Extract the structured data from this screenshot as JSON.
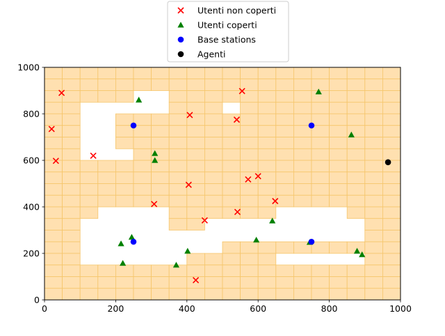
{
  "chart_data": {
    "type": "scatter",
    "title": "",
    "xlabel": "",
    "ylabel": "",
    "xlim": [
      0,
      1000
    ],
    "ylim": [
      0,
      1000
    ],
    "xticks": [
      0,
      200,
      400,
      600,
      800,
      1000
    ],
    "yticks": [
      0,
      200,
      400,
      600,
      800,
      1000
    ],
    "grid": false,
    "legend_position": "top-center",
    "cell_size": 50,
    "coverage_cells": [
      [
        0,
        0
      ],
      [
        1,
        0
      ],
      [
        2,
        0
      ],
      [
        3,
        0
      ],
      [
        4,
        0
      ],
      [
        5,
        0
      ],
      [
        6,
        0
      ],
      [
        7,
        0
      ],
      [
        8,
        0
      ],
      [
        9,
        0
      ],
      [
        10,
        0
      ],
      [
        11,
        0
      ],
      [
        12,
        0
      ],
      [
        13,
        0
      ],
      [
        14,
        0
      ],
      [
        15,
        0
      ],
      [
        16,
        0
      ],
      [
        17,
        0
      ],
      [
        18,
        0
      ],
      [
        19,
        0
      ],
      [
        0,
        1
      ],
      [
        1,
        1
      ],
      [
        2,
        1
      ],
      [
        3,
        1
      ],
      [
        4,
        1
      ],
      [
        5,
        1
      ],
      [
        6,
        1
      ],
      [
        7,
        1
      ],
      [
        8,
        1
      ],
      [
        9,
        1
      ],
      [
        10,
        1
      ],
      [
        11,
        1
      ],
      [
        12,
        1
      ],
      [
        13,
        1
      ],
      [
        14,
        1
      ],
      [
        15,
        1
      ],
      [
        16,
        1
      ],
      [
        17,
        1
      ],
      [
        18,
        1
      ],
      [
        19,
        1
      ],
      [
        0,
        2
      ],
      [
        1,
        2
      ],
      [
        2,
        2
      ],
      [
        3,
        2
      ],
      [
        4,
        2
      ],
      [
        7,
        2
      ],
      [
        8,
        2
      ],
      [
        9,
        2
      ],
      [
        10,
        2
      ],
      [
        11,
        2
      ],
      [
        12,
        2
      ],
      [
        13,
        2
      ],
      [
        14,
        2
      ],
      [
        15,
        2
      ],
      [
        16,
        2
      ],
      [
        17,
        2
      ],
      [
        18,
        2
      ],
      [
        19,
        2
      ],
      [
        0,
        3
      ],
      [
        1,
        3
      ],
      [
        7,
        3
      ],
      [
        8,
        3
      ],
      [
        9,
        3
      ],
      [
        11,
        3
      ],
      [
        12,
        3
      ],
      [
        13,
        3
      ],
      [
        14,
        3
      ],
      [
        15,
        3
      ],
      [
        16,
        3
      ],
      [
        17,
        3
      ],
      [
        18,
        3
      ],
      [
        19,
        3
      ],
      [
        0,
        4
      ],
      [
        1,
        4
      ],
      [
        4,
        4
      ],
      [
        5,
        4
      ],
      [
        6,
        4
      ],
      [
        7,
        4
      ],
      [
        8,
        4
      ],
      [
        9,
        4
      ],
      [
        10,
        4
      ],
      [
        11,
        4
      ],
      [
        12,
        4
      ],
      [
        13,
        4
      ],
      [
        14,
        4
      ],
      [
        15,
        4
      ],
      [
        16,
        4
      ],
      [
        17,
        4
      ],
      [
        18,
        4
      ],
      [
        19,
        4
      ],
      [
        0,
        5
      ],
      [
        1,
        5
      ],
      [
        4,
        5
      ],
      [
        5,
        5
      ],
      [
        6,
        5
      ],
      [
        7,
        5
      ],
      [
        8,
        5
      ],
      [
        9,
        5
      ],
      [
        10,
        5
      ],
      [
        11,
        5
      ],
      [
        12,
        5
      ],
      [
        13,
        5
      ],
      [
        14,
        5
      ],
      [
        15,
        5
      ],
      [
        16,
        5
      ],
      [
        17,
        5
      ],
      [
        18,
        5
      ],
      [
        19,
        5
      ],
      [
        0,
        6
      ],
      [
        1,
        6
      ],
      [
        4,
        6
      ],
      [
        5,
        6
      ],
      [
        6,
        6
      ],
      [
        7,
        6
      ],
      [
        8,
        6
      ],
      [
        9,
        6
      ],
      [
        10,
        6
      ],
      [
        11,
        6
      ],
      [
        12,
        6
      ],
      [
        13,
        6
      ],
      [
        14,
        6
      ],
      [
        15,
        6
      ],
      [
        16,
        6
      ],
      [
        17,
        6
      ],
      [
        18,
        6
      ],
      [
        19,
        6
      ],
      [
        0,
        7
      ],
      [
        1,
        7
      ],
      [
        5,
        7
      ],
      [
        6,
        7
      ],
      [
        7,
        7
      ],
      [
        8,
        7
      ],
      [
        9,
        7
      ],
      [
        10,
        7
      ],
      [
        11,
        7
      ],
      [
        12,
        7
      ],
      [
        13,
        7
      ],
      [
        14,
        7
      ],
      [
        15,
        7
      ],
      [
        16,
        7
      ],
      [
        17,
        7
      ],
      [
        18,
        7
      ],
      [
        19,
        7
      ],
      [
        0,
        8
      ],
      [
        1,
        8
      ],
      [
        2,
        8
      ],
      [
        3,
        8
      ],
      [
        4,
        8
      ],
      [
        5,
        8
      ],
      [
        6,
        8
      ],
      [
        7,
        8
      ],
      [
        8,
        8
      ],
      [
        9,
        8
      ],
      [
        10,
        8
      ],
      [
        11,
        8
      ],
      [
        12,
        8
      ],
      [
        13,
        8
      ],
      [
        14,
        8
      ],
      [
        15,
        8
      ],
      [
        16,
        8
      ],
      [
        17,
        8
      ],
      [
        18,
        8
      ],
      [
        19,
        8
      ],
      [
        0,
        9
      ],
      [
        1,
        9
      ],
      [
        2,
        9
      ],
      [
        3,
        9
      ],
      [
        4,
        9
      ],
      [
        5,
        9
      ],
      [
        6,
        9
      ],
      [
        7,
        9
      ],
      [
        8,
        9
      ],
      [
        9,
        9
      ],
      [
        10,
        9
      ],
      [
        11,
        9
      ],
      [
        12,
        9
      ],
      [
        13,
        9
      ],
      [
        14,
        9
      ],
      [
        15,
        9
      ],
      [
        16,
        9
      ],
      [
        17,
        9
      ],
      [
        18,
        9
      ],
      [
        19,
        9
      ],
      [
        0,
        10
      ],
      [
        1,
        10
      ],
      [
        2,
        10
      ],
      [
        3,
        10
      ],
      [
        4,
        10
      ],
      [
        5,
        10
      ],
      [
        6,
        10
      ],
      [
        7,
        10
      ],
      [
        8,
        10
      ],
      [
        9,
        10
      ],
      [
        10,
        10
      ],
      [
        11,
        10
      ],
      [
        12,
        10
      ],
      [
        13,
        10
      ],
      [
        14,
        10
      ],
      [
        15,
        10
      ],
      [
        16,
        10
      ],
      [
        17,
        10
      ],
      [
        18,
        10
      ],
      [
        19,
        10
      ],
      [
        0,
        11
      ],
      [
        1,
        11
      ],
      [
        2,
        11
      ],
      [
        3,
        11
      ],
      [
        4,
        11
      ],
      [
        5,
        11
      ],
      [
        6,
        11
      ],
      [
        7,
        11
      ],
      [
        8,
        11
      ],
      [
        9,
        11
      ],
      [
        10,
        11
      ],
      [
        11,
        11
      ],
      [
        12,
        11
      ],
      [
        13,
        11
      ],
      [
        14,
        11
      ],
      [
        15,
        11
      ],
      [
        16,
        11
      ],
      [
        17,
        11
      ],
      [
        18,
        11
      ],
      [
        19,
        11
      ],
      [
        0,
        12
      ],
      [
        1,
        12
      ],
      [
        2,
        12
      ],
      [
        7,
        12
      ],
      [
        8,
        12
      ],
      [
        9,
        12
      ],
      [
        10,
        12
      ],
      [
        11,
        12
      ],
      [
        12,
        12
      ],
      [
        17,
        12
      ],
      [
        18,
        12
      ],
      [
        19,
        12
      ],
      [
        0,
        13
      ],
      [
        1,
        13
      ],
      [
        7,
        13
      ],
      [
        8,
        13
      ],
      [
        18,
        13
      ],
      [
        19,
        13
      ],
      [
        0,
        14
      ],
      [
        1,
        14
      ],
      [
        18,
        14
      ],
      [
        19,
        14
      ],
      [
        0,
        15
      ],
      [
        1,
        15
      ],
      [
        10,
        15
      ],
      [
        11,
        15
      ],
      [
        12,
        15
      ],
      [
        13,
        15
      ],
      [
        14,
        15
      ],
      [
        15,
        15
      ],
      [
        16,
        15
      ],
      [
        17,
        15
      ],
      [
        18,
        15
      ],
      [
        19,
        15
      ],
      [
        0,
        16
      ],
      [
        1,
        16
      ],
      [
        8,
        16
      ],
      [
        9,
        16
      ],
      [
        10,
        16
      ],
      [
        11,
        16
      ],
      [
        12,
        16
      ],
      [
        18,
        16
      ],
      [
        19,
        16
      ],
      [
        0,
        17
      ],
      [
        1,
        17
      ],
      [
        2,
        17
      ],
      [
        3,
        17
      ],
      [
        4,
        17
      ],
      [
        5,
        17
      ],
      [
        6,
        17
      ],
      [
        7,
        17
      ],
      [
        8,
        17
      ],
      [
        9,
        17
      ],
      [
        10,
        17
      ],
      [
        11,
        17
      ],
      [
        12,
        17
      ],
      [
        13,
        17
      ],
      [
        14,
        17
      ],
      [
        15,
        17
      ],
      [
        16,
        17
      ],
      [
        17,
        17
      ],
      [
        18,
        17
      ],
      [
        19,
        17
      ],
      [
        0,
        18
      ],
      [
        1,
        18
      ],
      [
        2,
        18
      ],
      [
        3,
        18
      ],
      [
        4,
        18
      ],
      [
        5,
        18
      ],
      [
        6,
        18
      ],
      [
        7,
        18
      ],
      [
        8,
        18
      ],
      [
        9,
        18
      ],
      [
        10,
        18
      ],
      [
        11,
        18
      ],
      [
        12,
        18
      ],
      [
        13,
        18
      ],
      [
        14,
        18
      ],
      [
        15,
        18
      ],
      [
        16,
        18
      ],
      [
        17,
        18
      ],
      [
        18,
        18
      ],
      [
        19,
        18
      ],
      [
        0,
        19
      ],
      [
        1,
        19
      ],
      [
        2,
        19
      ],
      [
        3,
        19
      ],
      [
        4,
        19
      ],
      [
        5,
        19
      ],
      [
        6,
        19
      ],
      [
        7,
        19
      ],
      [
        8,
        19
      ],
      [
        9,
        19
      ],
      [
        10,
        19
      ],
      [
        11,
        19
      ],
      [
        12,
        19
      ],
      [
        13,
        19
      ],
      [
        14,
        19
      ],
      [
        15,
        19
      ],
      [
        16,
        19
      ],
      [
        17,
        19
      ],
      [
        18,
        19
      ],
      [
        19,
        19
      ]
    ],
    "series": [
      {
        "name": "Utenti non coperti",
        "marker": "x",
        "color": "#ff0000",
        "points": [
          [
            48,
            890
          ],
          [
            20,
            735
          ],
          [
            32,
            598
          ],
          [
            137,
            620
          ],
          [
            308,
            412
          ],
          [
            408,
            795
          ],
          [
            405,
            495
          ],
          [
            450,
            342
          ],
          [
            425,
            85
          ],
          [
            540,
            775
          ],
          [
            555,
            898
          ],
          [
            542,
            378
          ],
          [
            572,
            518
          ],
          [
            600,
            532
          ],
          [
            648,
            425
          ]
        ]
      },
      {
        "name": "Utenti coperti",
        "marker": "triangle",
        "color": "#008000",
        "points": [
          [
            265,
            860
          ],
          [
            310,
            630
          ],
          [
            310,
            600
          ],
          [
            215,
            242
          ],
          [
            245,
            270
          ],
          [
            220,
            158
          ],
          [
            370,
            150
          ],
          [
            402,
            210
          ],
          [
            595,
            258
          ],
          [
            640,
            340
          ],
          [
            745,
            248
          ],
          [
            770,
            895
          ],
          [
            862,
            710
          ],
          [
            878,
            210
          ],
          [
            892,
            195
          ]
        ]
      },
      {
        "name": "Base stations",
        "marker": "circle",
        "color": "#0000ff",
        "points": [
          [
            250,
            750
          ],
          [
            750,
            750
          ],
          [
            250,
            250
          ],
          [
            750,
            250
          ]
        ]
      },
      {
        "name": "Agenti",
        "marker": "circle",
        "color": "#000000",
        "points": [
          [
            965,
            592
          ]
        ]
      }
    ],
    "colors": {
      "coverage_fill": "#ffe0b0",
      "coverage_edge": "#f5c56a"
    }
  }
}
